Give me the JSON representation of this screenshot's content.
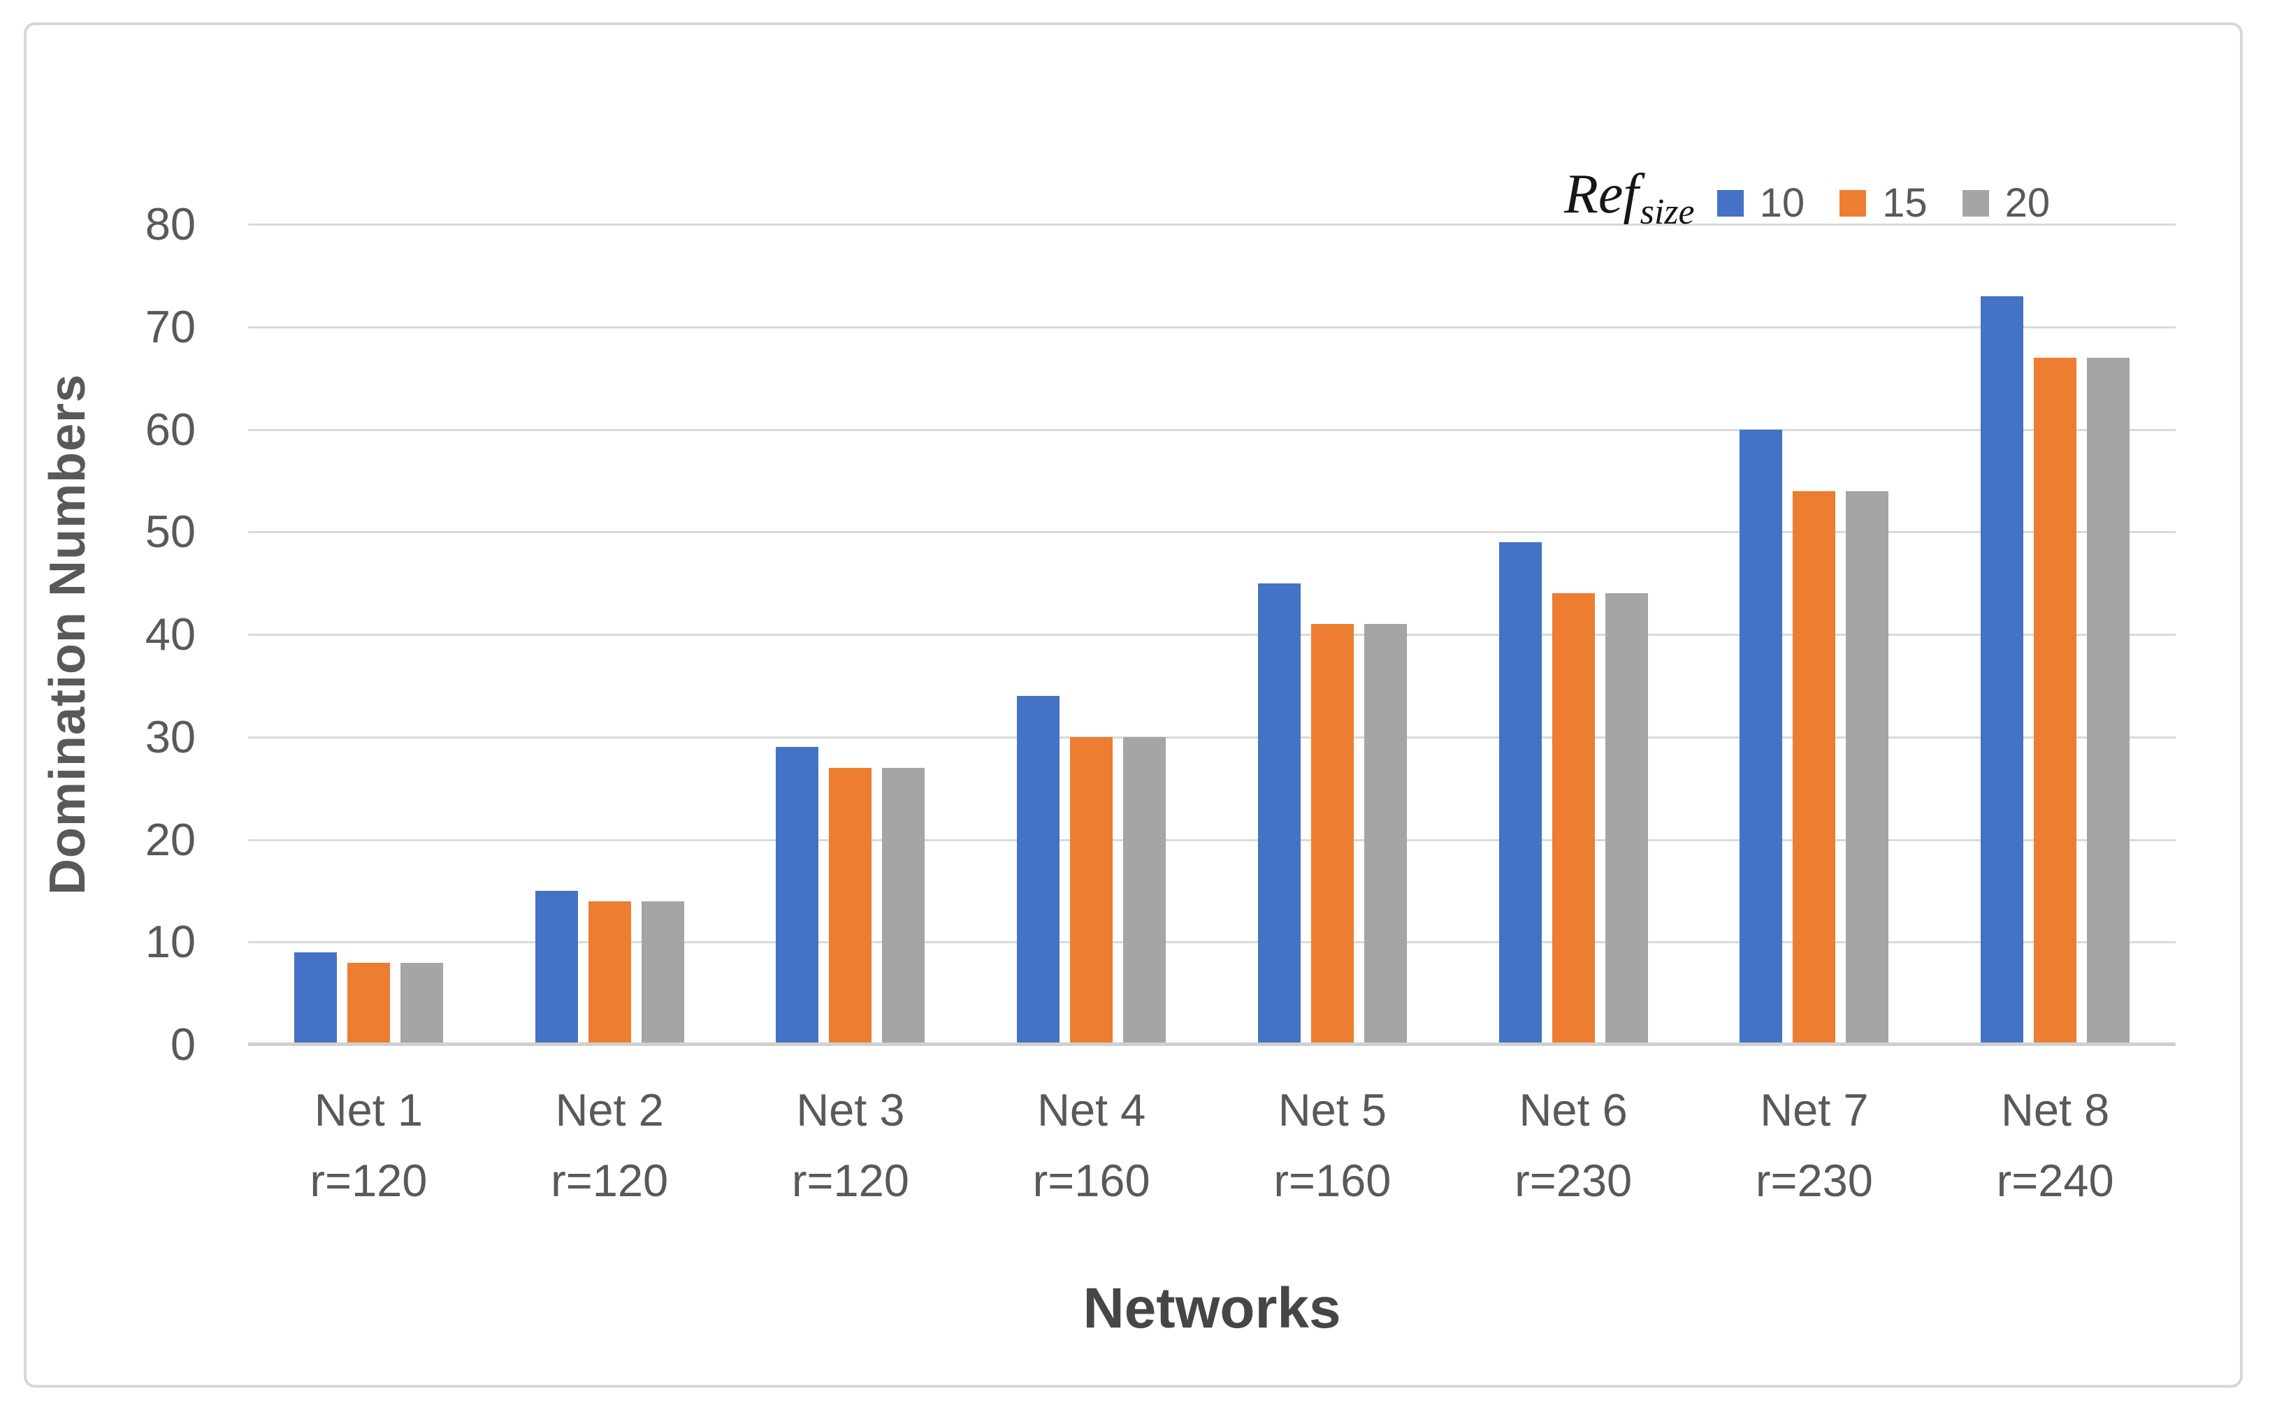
{
  "chart_data": {
    "type": "bar",
    "xlabel": "Networks",
    "ylabel": "Domination Numbers",
    "ylim": [
      0,
      80
    ],
    "ytick_step": 10,
    "grid": true,
    "legend_position": "top-right",
    "legend_title_main": "Ref",
    "legend_title_sub": "size",
    "categories": [
      "Net 1",
      "Net 2",
      "Net 3",
      "Net 4",
      "Net 5",
      "Net 6",
      "Net 7",
      "Net 8"
    ],
    "category_sublabels": [
      "r=120",
      "r=120",
      "r=120",
      "r=160",
      "r=160",
      "r=230",
      "r=230",
      "r=240"
    ],
    "series": [
      {
        "name": "10",
        "color": "#4472C4",
        "values": [
          9,
          15,
          29,
          34,
          45,
          49,
          60,
          73
        ]
      },
      {
        "name": "15",
        "color": "#ED7D31",
        "values": [
          8,
          14,
          27,
          30,
          41,
          44,
          54,
          67
        ]
      },
      {
        "name": "20",
        "color": "#A5A5A5",
        "values": [
          8,
          14,
          27,
          30,
          41,
          44,
          54,
          67
        ]
      }
    ]
  },
  "colors": {
    "background": "#ffffff",
    "frame_border": "#d7d7d7",
    "grid_line": "#d9d9d9",
    "axis_line": "#cfcfcf",
    "tick_text": "#595959",
    "axis_title_text": "#464646",
    "legend_text": "#595959",
    "legend_title_text": "#161616"
  }
}
